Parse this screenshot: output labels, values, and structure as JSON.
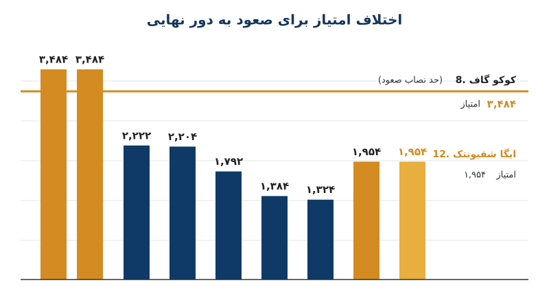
{
  "chart_data": {
    "type": "bar",
    "title": "اختلاف امتیاز برای صعود به دور نهایی",
    "values": [
      3484,
      3484,
      2222,
      2204,
      1792,
      1384,
      1324,
      1954,
      1954
    ],
    "value_labels": [
      "۳,۴۸۴",
      "۳,۴۸۴",
      "۲,۲۲۲",
      "۲,۲۰۴",
      "۱,۷۹۲",
      "۱,۳۸۴",
      "۱,۳۲۴",
      "۱,۹۵۴",
      "۱,۹۵۴"
    ],
    "colors": [
      "#d38b22",
      "#d38b22",
      "#0f3a67",
      "#0f3a67",
      "#0f3a67",
      "#0f3a67",
      "#0f3a67",
      "#d38b22",
      "#e8ae3e"
    ],
    "value_label_colors": [
      "#222222",
      "#222222",
      "#222222",
      "#222222",
      "#222222",
      "#222222",
      "#222222",
      "#222222",
      "#d38b22"
    ],
    "grid": true,
    "annotations": [
      {
        "name": "8. کوکو گاف",
        "note": "(حد نصاب صعود)",
        "value_label": "۳,۴۸۴",
        "unit": "امتیاز"
      },
      {
        "name": "12. ایگا شفیونتک",
        "value_label": "۱,۹۵۴",
        "unit": "امتیاز"
      }
    ]
  }
}
